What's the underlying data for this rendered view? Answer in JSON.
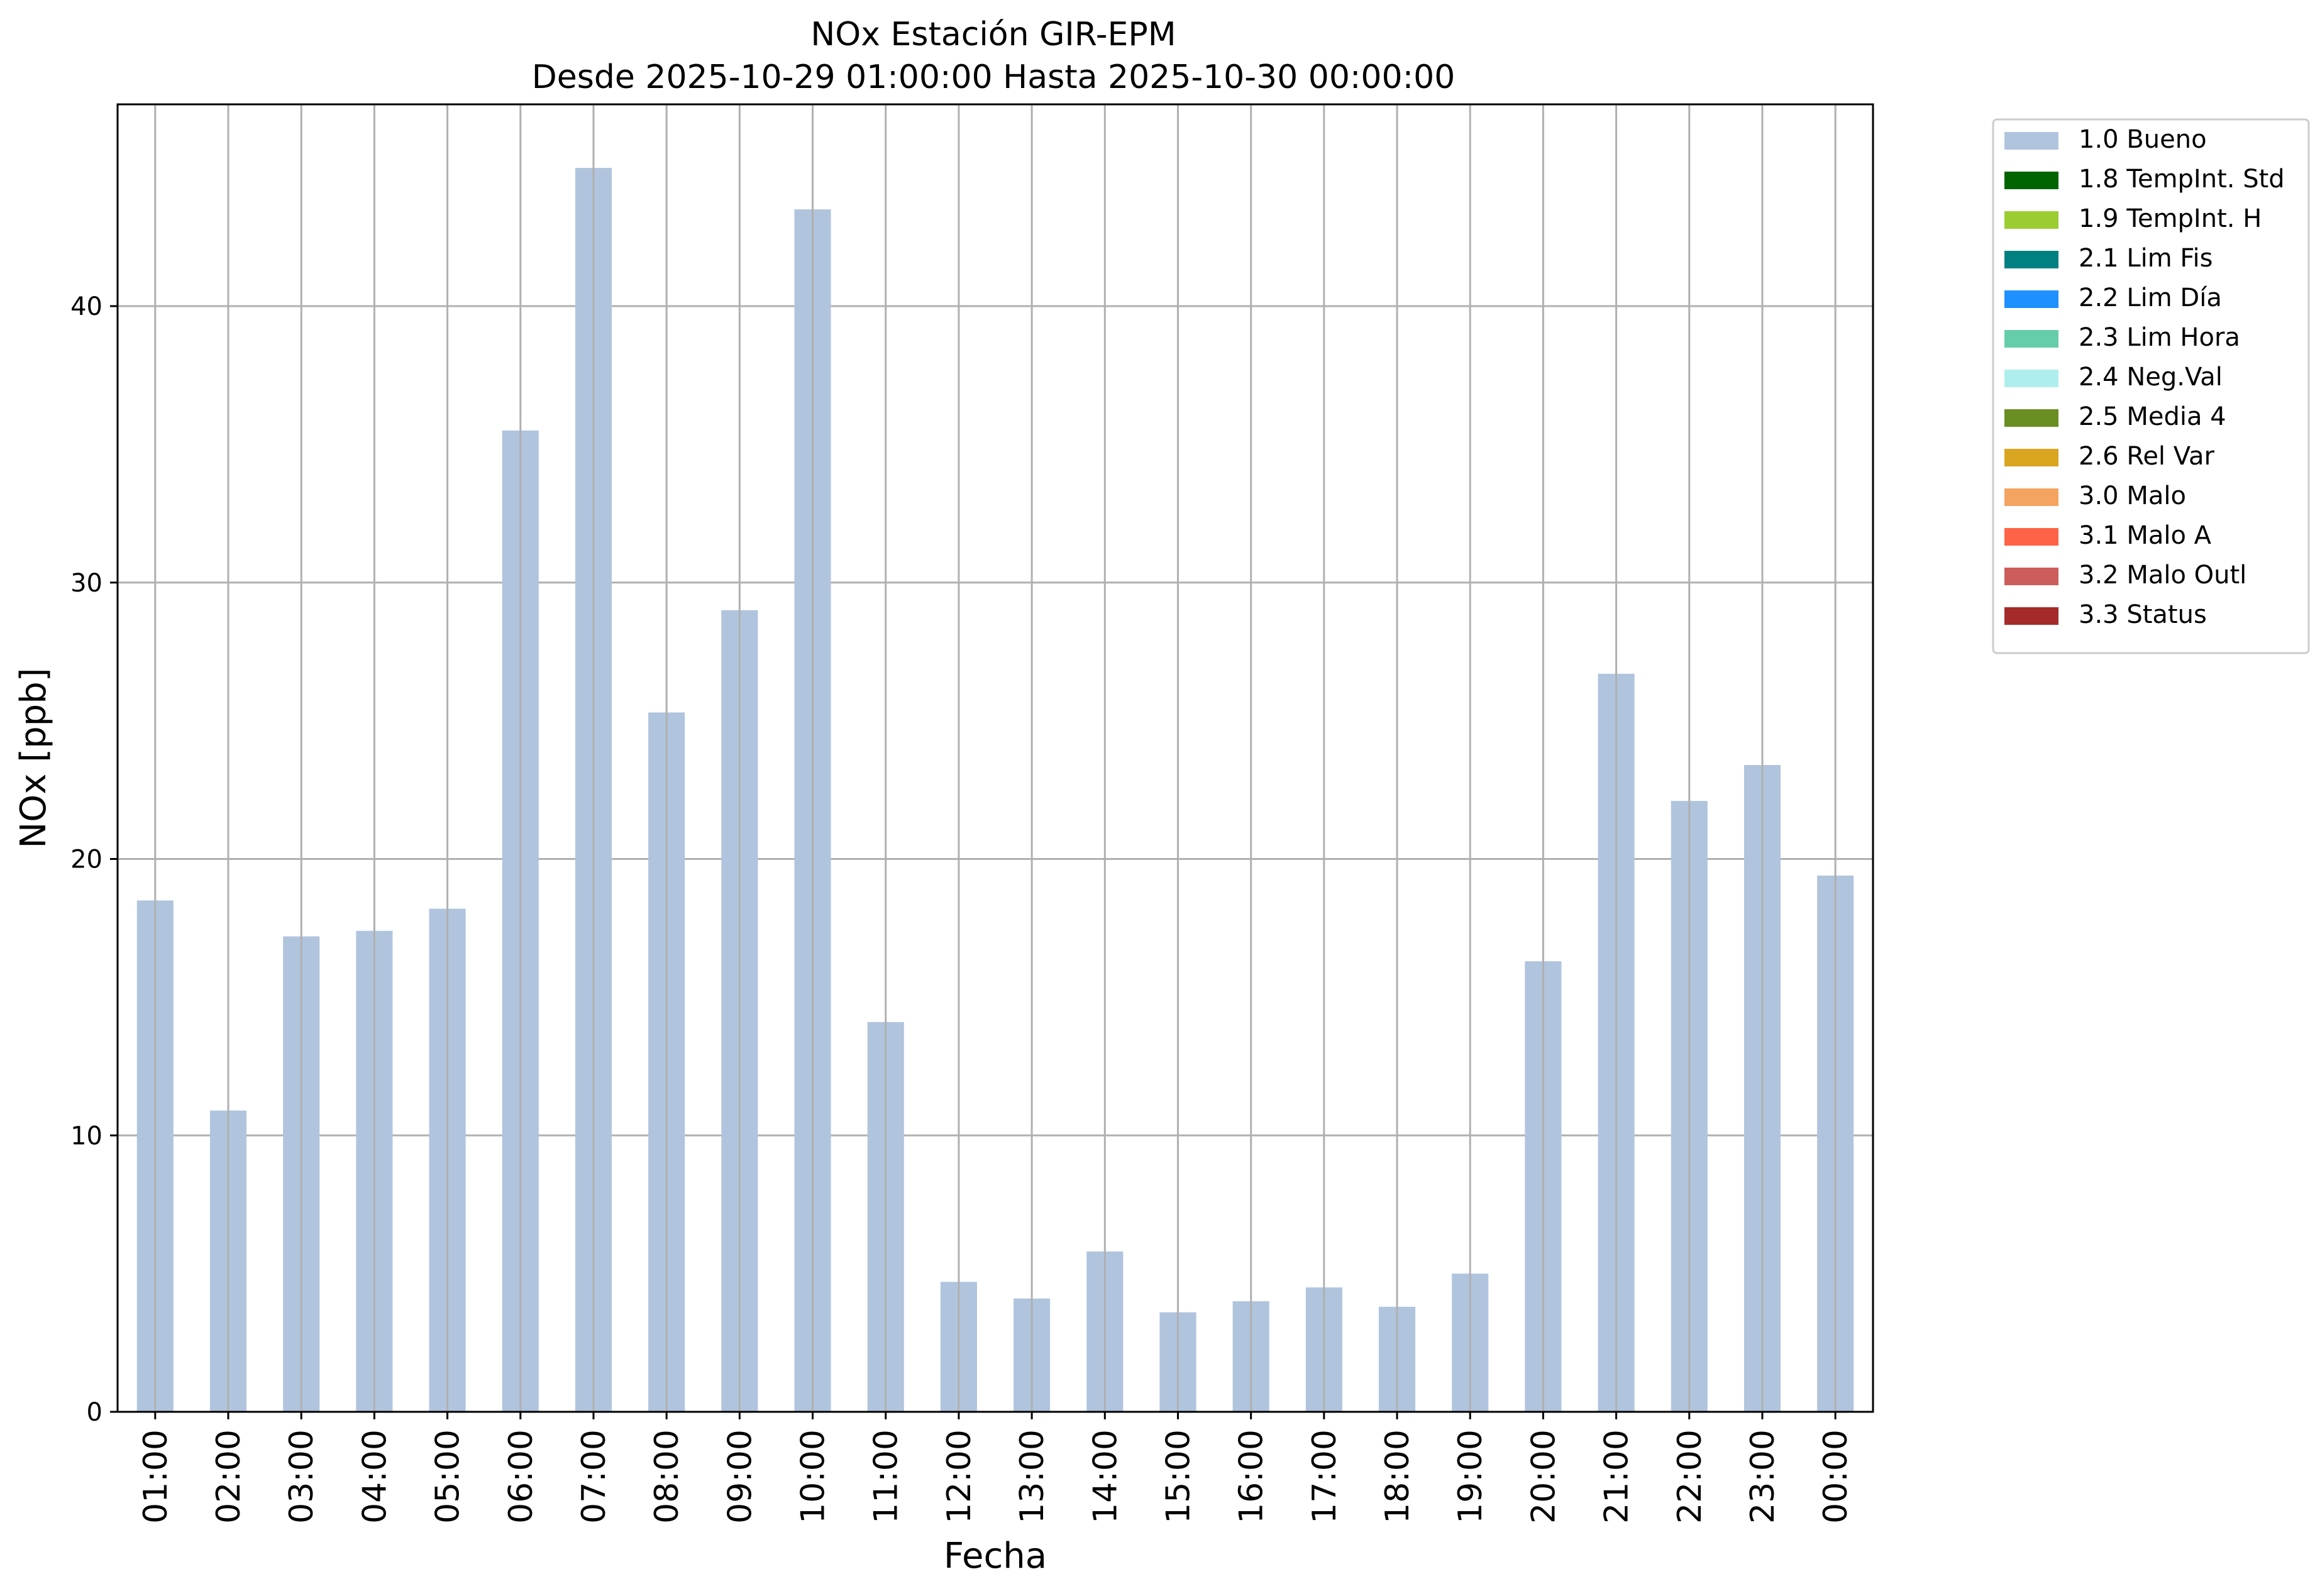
{
  "chart_data": {
    "type": "bar",
    "title": "NOx Estación GIR-EPM",
    "subtitle": "Desde 2025-10-29 01:00:00 Hasta 2025-10-30 00:00:00",
    "xlabel": "Fecha",
    "ylabel": "NOx [ppb]",
    "categories": [
      "01:00",
      "02:00",
      "03:00",
      "04:00",
      "05:00",
      "06:00",
      "07:00",
      "08:00",
      "09:00",
      "10:00",
      "11:00",
      "12:00",
      "13:00",
      "14:00",
      "15:00",
      "16:00",
      "17:00",
      "18:00",
      "19:00",
      "20:00",
      "21:00",
      "22:00",
      "23:00",
      "00:00"
    ],
    "series": [
      {
        "name": "1.0 Bueno",
        "color": "#b0c4de",
        "values": [
          18.5,
          10.9,
          17.2,
          17.4,
          18.2,
          35.5,
          45.0,
          25.3,
          29.0,
          43.5,
          14.1,
          4.7,
          4.1,
          5.8,
          3.6,
          4.0,
          4.5,
          3.8,
          5.0,
          16.3,
          26.7,
          22.1,
          23.4,
          19.4
        ]
      }
    ],
    "ylim": [
      0,
      47.3
    ],
    "yticks": [
      0,
      10,
      20,
      30,
      40
    ],
    "grid": true,
    "legend_position": "outside-top-right",
    "legend": [
      {
        "label": "1.0 Bueno",
        "color": "#b0c4de"
      },
      {
        "label": "1.8 TempInt. Std",
        "color": "#006400"
      },
      {
        "label": "1.9 TempInt. H",
        "color": "#9acd32"
      },
      {
        "label": "2.1 Lim Fis",
        "color": "#008080"
      },
      {
        "label": "2.2 Lim Día",
        "color": "#1e90ff"
      },
      {
        "label": "2.3 Lim Hora",
        "color": "#66cdaa"
      },
      {
        "label": "2.4 Neg.Val",
        "color": "#afeeee"
      },
      {
        "label": "2.5 Media 4",
        "color": "#6b8e23"
      },
      {
        "label": "2.6 Rel Var",
        "color": "#daa520"
      },
      {
        "label": "3.0 Malo",
        "color": "#f4a460"
      },
      {
        "label": "3.1 Malo A",
        "color": "#ff6347"
      },
      {
        "label": "3.2 Malo Outl",
        "color": "#cd5c5c"
      },
      {
        "label": "3.3 Status",
        "color": "#a52a2a"
      }
    ]
  }
}
